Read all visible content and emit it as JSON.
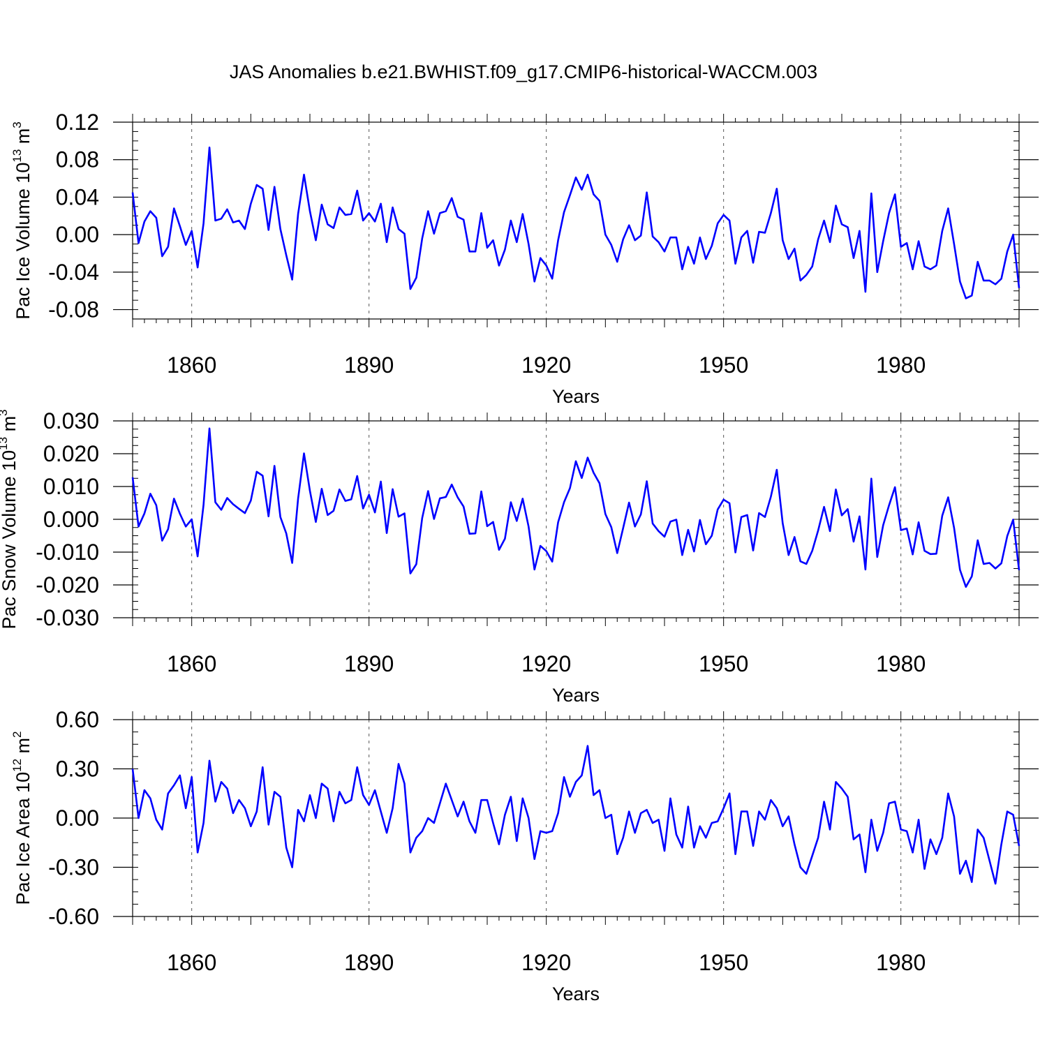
{
  "title": "JAS Anomalies b.e21.BWHIST.f09_g17.CMIP6-historical-WACCM.003",
  "line_color": "#0000ff",
  "chart_data": [
    {
      "type": "line",
      "ylabel": "Pac Ice Volume 10",
      "ylabel_exp": "13",
      "ylabel_unit": " m",
      "ylabel_unit_exp": "3",
      "xlabel": "Years",
      "xlim": [
        1850,
        2000
      ],
      "ylim": [
        -0.09,
        0.12
      ],
      "yticks": [
        -0.08,
        -0.04,
        0.0,
        0.04,
        0.08,
        0.12
      ],
      "ytick_labels": [
        "-0.08",
        "-0.04",
        "0.00",
        "0.04",
        "0.08",
        "0.12"
      ],
      "xticks": [
        1860,
        1890,
        1920,
        1950,
        1980
      ],
      "xtick_labels": [
        "1860",
        "1890",
        "1920",
        "1950",
        "1980"
      ],
      "grid": "vertical dashed at labeled years",
      "x_start": 1850,
      "values": [
        0.045,
        -0.009,
        0.014,
        0.025,
        0.018,
        -0.023,
        -0.013,
        0.028,
        0.009,
        -0.011,
        0.004,
        -0.035,
        0.012,
        0.093,
        0.015,
        0.017,
        0.027,
        0.013,
        0.015,
        0.006,
        0.033,
        0.053,
        0.049,
        0.005,
        0.051,
        0.006,
        -0.022,
        -0.048,
        0.022,
        0.064,
        0.025,
        -0.006,
        0.032,
        0.011,
        0.007,
        0.029,
        0.021,
        0.022,
        0.047,
        0.015,
        0.023,
        0.014,
        0.033,
        -0.008,
        0.029,
        0.006,
        0.001,
        -0.058,
        -0.046,
        -0.004,
        0.025,
        0.001,
        0.023,
        0.025,
        0.039,
        0.019,
        0.016,
        -0.018,
        -0.018,
        0.023,
        -0.014,
        -0.006,
        -0.033,
        -0.016,
        0.015,
        -0.008,
        0.022,
        -0.01,
        -0.05,
        -0.025,
        -0.033,
        -0.047,
        -0.006,
        0.024,
        0.042,
        0.061,
        0.048,
        0.064,
        0.043,
        0.036,
        0.0,
        -0.011,
        -0.029,
        -0.005,
        0.01,
        -0.006,
        -0.001,
        0.045,
        -0.002,
        -0.008,
        -0.018,
        -0.003,
        -0.003,
        -0.037,
        -0.013,
        -0.031,
        -0.003,
        -0.026,
        -0.012,
        0.012,
        0.021,
        0.015,
        -0.031,
        -0.003,
        0.004,
        -0.03,
        0.003,
        0.002,
        0.023,
        0.049,
        -0.006,
        -0.026,
        -0.015,
        -0.049,
        -0.043,
        -0.034,
        -0.005,
        0.015,
        -0.008,
        0.031,
        0.011,
        0.008,
        -0.025,
        0.004,
        -0.061,
        0.044,
        -0.04,
        -0.007,
        0.023,
        0.043,
        -0.013,
        -0.009,
        -0.037,
        -0.007,
        -0.034,
        -0.037,
        -0.033,
        0.004,
        0.028,
        -0.01,
        -0.05,
        -0.068,
        -0.065,
        -0.029,
        -0.049,
        -0.049,
        -0.053,
        -0.047,
        -0.018,
        0.0,
        -0.057
      ]
    },
    {
      "type": "line",
      "ylabel": "Pac Snow Volume 10",
      "ylabel_exp": "13",
      "ylabel_unit": " m",
      "ylabel_unit_exp": "3",
      "xlabel": "Years",
      "xlim": [
        1850,
        2000
      ],
      "ylim": [
        -0.03,
        0.03
      ],
      "yticks": [
        -0.03,
        -0.02,
        -0.01,
        0.0,
        0.01,
        0.02,
        0.03
      ],
      "ytick_labels": [
        "-0.030",
        "-0.020",
        "-0.010",
        "0.000",
        "0.010",
        "0.020",
        "0.030"
      ],
      "xticks": [
        1860,
        1890,
        1920,
        1950,
        1980
      ],
      "xtick_labels": [
        "1860",
        "1890",
        "1920",
        "1950",
        "1980"
      ],
      "grid": "vertical dashed at labeled years",
      "x_start": 1850,
      "values": [
        0.0128,
        -0.0022,
        0.0018,
        0.0078,
        0.0043,
        -0.0065,
        -0.003,
        0.0063,
        0.0017,
        -0.0022,
        0.0,
        -0.0113,
        0.0044,
        0.0277,
        0.0052,
        0.0029,
        0.0065,
        0.0046,
        0.0032,
        0.0019,
        0.0057,
        0.0145,
        0.0133,
        0.0009,
        0.0163,
        0.0007,
        -0.0043,
        -0.0133,
        0.0063,
        0.0201,
        0.0087,
        -0.0008,
        0.0093,
        0.0013,
        0.0026,
        0.0091,
        0.0056,
        0.0061,
        0.0132,
        0.0033,
        0.0075,
        0.0021,
        0.0115,
        -0.0042,
        0.0092,
        0.0008,
        0.0018,
        -0.0165,
        -0.0137,
        0.0004,
        0.0086,
        0.0001,
        0.0064,
        0.0068,
        0.0106,
        0.0067,
        0.0039,
        -0.0044,
        -0.0043,
        0.0085,
        -0.0021,
        -0.0008,
        -0.0093,
        -0.0059,
        0.0052,
        -0.0005,
        0.0063,
        -0.0022,
        -0.0153,
        -0.0081,
        -0.0097,
        -0.0129,
        -0.0009,
        0.0052,
        0.0095,
        0.0177,
        0.0126,
        0.0188,
        0.0142,
        0.011,
        0.0016,
        -0.0024,
        -0.0103,
        -0.0027,
        0.0051,
        -0.0022,
        0.0015,
        0.0116,
        -0.0013,
        -0.0036,
        -0.0053,
        -0.0007,
        -0.0001,
        -0.0109,
        -0.0032,
        -0.0098,
        -0.0002,
        -0.0076,
        -0.005,
        0.003,
        0.006,
        0.0049,
        -0.0101,
        0.0007,
        0.0013,
        -0.0095,
        0.0019,
        0.0007,
        0.0069,
        0.0151,
        -0.0012,
        -0.0109,
        -0.0054,
        -0.0128,
        -0.0136,
        -0.0096,
        -0.0034,
        0.0038,
        -0.0036,
        0.0091,
        0.0012,
        0.0031,
        -0.0068,
        0.0009,
        -0.0153,
        0.0124,
        -0.0115,
        -0.0018,
        0.0043,
        0.0098,
        -0.0033,
        -0.0028,
        -0.0107,
        -0.0009,
        -0.0096,
        -0.0106,
        -0.0105,
        0.0011,
        0.0067,
        -0.0026,
        -0.0154,
        -0.0206,
        -0.0174,
        -0.0064,
        -0.0136,
        -0.0133,
        -0.015,
        -0.0134,
        -0.0051,
        -0.0001,
        -0.0155
      ]
    },
    {
      "type": "line",
      "ylabel": "Pac Ice Area 10",
      "ylabel_exp": "12",
      "ylabel_unit": " m",
      "ylabel_unit_exp": "2",
      "xlabel": "Years",
      "xlim": [
        1850,
        2000
      ],
      "ylim": [
        -0.6,
        0.6
      ],
      "yticks": [
        -0.6,
        -0.3,
        0.0,
        0.3,
        0.6
      ],
      "ytick_labels": [
        "-0.60",
        "-0.30",
        "0.00",
        "0.30",
        "0.60"
      ],
      "xticks": [
        1860,
        1890,
        1920,
        1950,
        1980
      ],
      "xtick_labels": [
        "1860",
        "1890",
        "1920",
        "1950",
        "1980"
      ],
      "grid": "vertical dashed at labeled years",
      "x_start": 1850,
      "values": [
        0.3,
        0.0,
        0.17,
        0.12,
        -0.01,
        -0.07,
        0.15,
        0.2,
        0.26,
        0.06,
        0.25,
        -0.21,
        -0.03,
        0.35,
        0.1,
        0.22,
        0.18,
        0.03,
        0.11,
        0.06,
        -0.05,
        0.04,
        0.31,
        -0.04,
        0.16,
        0.13,
        -0.18,
        -0.3,
        0.05,
        -0.02,
        0.14,
        0.0,
        0.21,
        0.18,
        -0.02,
        0.16,
        0.09,
        0.11,
        0.31,
        0.14,
        0.08,
        0.17,
        0.04,
        -0.09,
        0.06,
        0.33,
        0.21,
        -0.21,
        -0.12,
        -0.08,
        0.0,
        -0.03,
        0.09,
        0.21,
        0.11,
        0.01,
        0.1,
        -0.02,
        -0.09,
        0.11,
        0.11,
        -0.03,
        -0.16,
        0.02,
        0.13,
        -0.14,
        0.12,
        0.0,
        -0.25,
        -0.08,
        -0.09,
        -0.08,
        0.03,
        0.25,
        0.13,
        0.22,
        0.26,
        0.44,
        0.14,
        0.17,
        0.0,
        0.02,
        -0.22,
        -0.12,
        0.04,
        -0.09,
        0.03,
        0.05,
        -0.03,
        -0.01,
        -0.2,
        0.12,
        -0.1,
        -0.18,
        0.07,
        -0.18,
        -0.05,
        -0.12,
        -0.03,
        -0.02,
        0.06,
        0.15,
        -0.22,
        0.04,
        0.04,
        -0.17,
        0.04,
        -0.01,
        0.11,
        0.06,
        -0.05,
        0.01,
        -0.16,
        -0.3,
        -0.34,
        -0.23,
        -0.12,
        0.1,
        -0.07,
        0.22,
        0.18,
        0.13,
        -0.13,
        -0.1,
        -0.33,
        -0.01,
        -0.2,
        -0.09,
        0.09,
        0.1,
        -0.07,
        -0.08,
        -0.21,
        -0.01,
        -0.31,
        -0.13,
        -0.22,
        -0.12,
        0.15,
        0.01,
        -0.34,
        -0.26,
        -0.39,
        -0.07,
        -0.12,
        -0.26,
        -0.4,
        -0.16,
        0.04,
        0.02,
        -0.17
      ]
    }
  ]
}
